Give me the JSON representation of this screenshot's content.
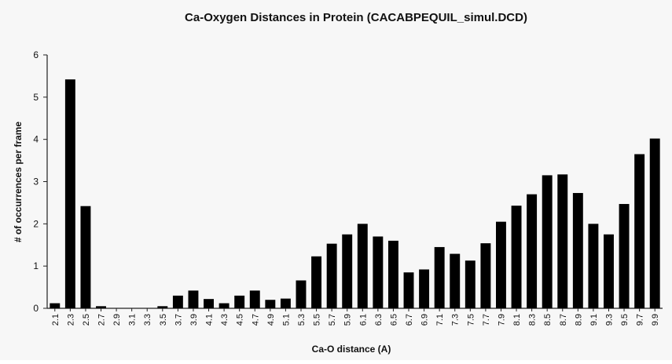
{
  "chart_data": {
    "type": "bar",
    "title": "Ca-Oxygen Distances in Protein (CACABPEQUIL_simul.DCD)",
    "xlabel": "Ca-O distance (A)",
    "ylabel": "# of occurrences per frame",
    "ylim": [
      0,
      6
    ],
    "yticks": [
      "0",
      "1",
      "2",
      "3",
      "4",
      "5",
      "6"
    ],
    "grid": false,
    "bar_color": "#000000",
    "categories": [
      "2.1",
      "2.3",
      "2.5",
      "2.7",
      "2.9",
      "3.1",
      "3.3",
      "3.5",
      "3.7",
      "3.9",
      "4.1",
      "4.3",
      "4.5",
      "4.7",
      "4.9",
      "5.1",
      "5.3",
      "5.5",
      "5.7",
      "5.9",
      "6.1",
      "6.3",
      "6.5",
      "6.7",
      "6.9",
      "7.1",
      "7.3",
      "7.5",
      "7.7",
      "7.9",
      "8.1",
      "8.3",
      "8.5",
      "8.7",
      "8.9",
      "9.1",
      "9.3",
      "9.5",
      "9.7",
      "9.9"
    ],
    "values": [
      0.12,
      5.42,
      2.42,
      0.05,
      0,
      0,
      0,
      0.05,
      0.3,
      0.42,
      0.22,
      0.12,
      0.3,
      0.42,
      0.2,
      0.23,
      0.66,
      1.23,
      1.53,
      1.75,
      2.0,
      1.7,
      1.6,
      0.85,
      0.92,
      1.45,
      1.29,
      1.13,
      1.54,
      2.05,
      2.43,
      2.7,
      3.15,
      3.17,
      2.73,
      2.0,
      1.75,
      2.47,
      3.65,
      4.02
    ]
  }
}
